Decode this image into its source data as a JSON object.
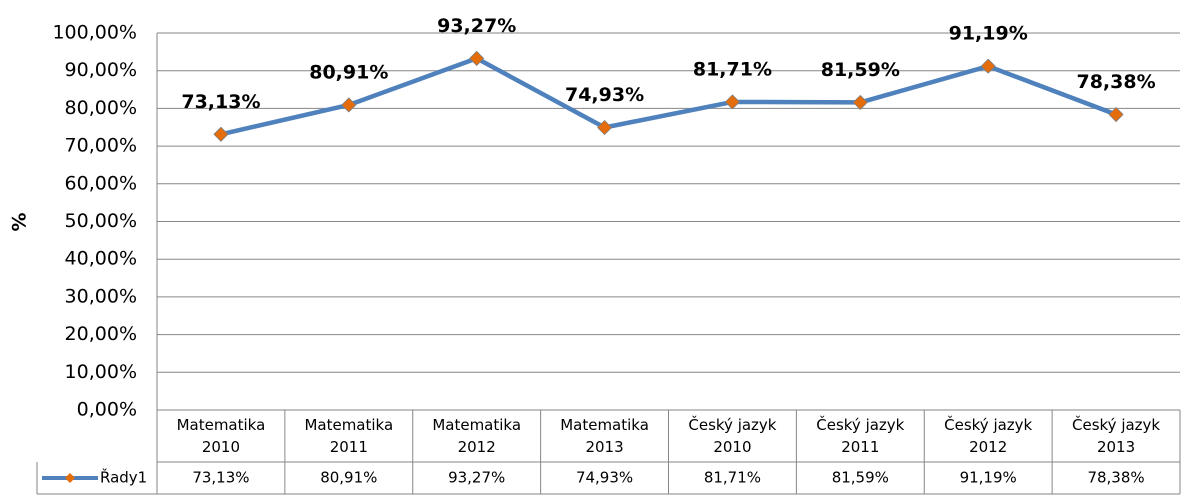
{
  "chart_data": {
    "type": "line",
    "categories": [
      "Matematika 2010",
      "Matematika 2011",
      "Matematika 2012",
      "Matematika 2013",
      "Český jazyk 2010",
      "Český jazyk 2011",
      "Český jazyk 2012",
      "Český jazyk 2013"
    ],
    "series": [
      {
        "name": "Řady1",
        "color": "#4f81bd",
        "marker_color": "#e46c0a",
        "values": [
          73.13,
          80.91,
          93.27,
          74.93,
          81.71,
          81.59,
          91.19,
          78.38
        ],
        "value_labels": [
          "73,13%",
          "80,91%",
          "93,27%",
          "74,93%",
          "81,71%",
          "81,59%",
          "91,19%",
          "78,38%"
        ]
      }
    ],
    "y_label": "%",
    "ylim": [
      0,
      100
    ],
    "yticks": [
      {
        "value": 0,
        "label": "0,00%"
      },
      {
        "value": 10,
        "label": "10,00%"
      },
      {
        "value": 20,
        "label": "20,00%"
      },
      {
        "value": 30,
        "label": "30,00%"
      },
      {
        "value": 40,
        "label": "40,00%"
      },
      {
        "value": 50,
        "label": "50,00%"
      },
      {
        "value": 60,
        "label": "60,00%"
      },
      {
        "value": 70,
        "label": "70,00%"
      },
      {
        "value": 80,
        "label": "80,00%"
      },
      {
        "value": 90,
        "label": "90,00%"
      },
      {
        "value": 100,
        "label": "100,00%"
      }
    ],
    "grid": true
  }
}
